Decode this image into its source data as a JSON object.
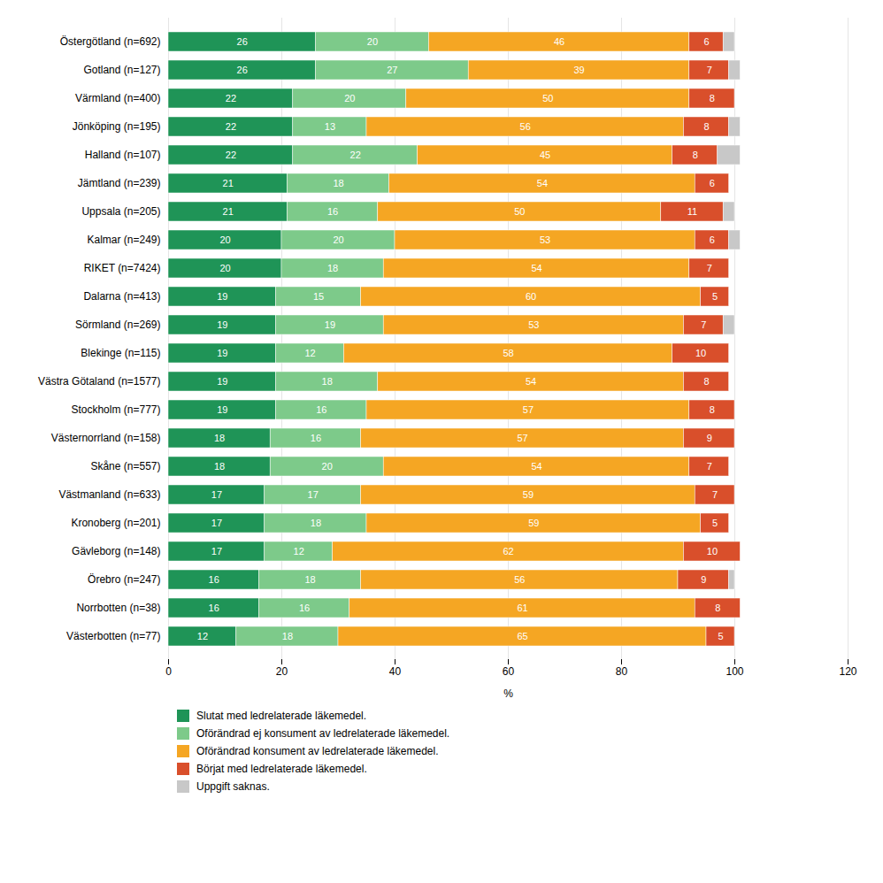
{
  "chart_data": {
    "type": "bar",
    "orientation": "horizontal",
    "stacked": true,
    "data_labels": true,
    "grid": true,
    "legend": "bottom",
    "xlabel": "%",
    "xlim": [
      0,
      120
    ],
    "xticks": [
      0,
      20,
      40,
      60,
      80,
      100,
      120
    ],
    "categories": [
      "Östergötland (n=692)",
      "Gotland (n=127)",
      "Värmland (n=400)",
      "Jönköping (n=195)",
      "Halland (n=107)",
      "Jämtland (n=239)",
      "Uppsala (n=205)",
      "Kalmar (n=249)",
      "RIKET (n=7424)",
      "Dalarna (n=413)",
      "Sörmland (n=269)",
      "Blekinge (n=115)",
      "Västra Götaland (n=1577)",
      "Stockholm (n=777)",
      "Västernorrland (n=158)",
      "Skåne (n=557)",
      "Västmanland (n=633)",
      "Kronoberg (n=201)",
      "Gävleborg (n=148)",
      "Örebro (n=247)",
      "Norrbotten (n=38)",
      "Västerbotten (n=77)"
    ],
    "series": [
      {
        "name": "Slutat med ledrelaterade läkemedel.",
        "color": "#1f9457",
        "values": [
          26,
          26,
          22,
          22,
          22,
          21,
          21,
          20,
          20,
          19,
          19,
          19,
          19,
          19,
          18,
          18,
          17,
          17,
          17,
          16,
          16,
          12
        ],
        "value_labels": [
          "26",
          "26",
          "22",
          "22",
          "22",
          "21",
          "21",
          "20",
          "20",
          "19",
          "19",
          "19",
          "19",
          "19",
          "18",
          "18",
          "17",
          "17",
          "17",
          "16",
          "16",
          "12"
        ]
      },
      {
        "name": "Oförändrad ej konsument av ledrelaterade läkemedel.",
        "color": "#7dca8a",
        "values": [
          20,
          27,
          20,
          13,
          22,
          18,
          16,
          20,
          18,
          15,
          19,
          12,
          18,
          16,
          16,
          20,
          17,
          18,
          12,
          18,
          16,
          18
        ],
        "value_labels": [
          "20",
          "27",
          "20",
          "13",
          "22",
          "18",
          "16",
          "20",
          "18",
          "15",
          "19",
          "12",
          "18",
          "16",
          "16",
          "20",
          "17",
          "18",
          "12",
          "18",
          "16",
          "18"
        ]
      },
      {
        "name": "Oförändrad konsument av ledrelaterade läkemedel.",
        "color": "#f5a623",
        "values": [
          46,
          39,
          50,
          56,
          45,
          54,
          50,
          53,
          54,
          60,
          53,
          58,
          54,
          57,
          57,
          54,
          59,
          59,
          62,
          56,
          61,
          65
        ],
        "value_labels": [
          "46",
          "39",
          "50",
          "56",
          "45",
          "54",
          "50",
          "53",
          "54",
          "60",
          "53",
          "58",
          "54",
          "57",
          "57",
          "54",
          "59",
          "59",
          "62",
          "56",
          "61",
          "65"
        ]
      },
      {
        "name": "Börjat med ledrelaterade läkemedel.",
        "color": "#d94f2b",
        "values": [
          6,
          7,
          8,
          8,
          8,
          6,
          11,
          6,
          7,
          5,
          7,
          10,
          8,
          8,
          9,
          7,
          7,
          5,
          10,
          9,
          8,
          5
        ],
        "value_labels": [
          "6",
          "7",
          "8",
          "8",
          "8",
          "6",
          "11",
          "6",
          "7",
          "5",
          "7",
          "10",
          "8",
          "8",
          "9",
          "7",
          "7",
          "5",
          "10",
          "9",
          "8",
          "5"
        ]
      },
      {
        "name": "Uppgift saknas.",
        "color": "#c8c8c8",
        "values": [
          2,
          2,
          0,
          2,
          4,
          0,
          2,
          2,
          0,
          0,
          2,
          0,
          0,
          0,
          0,
          0,
          0,
          0,
          0,
          1,
          0,
          0
        ],
        "value_labels": [
          null,
          null,
          null,
          null,
          null,
          null,
          null,
          null,
          null,
          null,
          null,
          null,
          null,
          null,
          null,
          null,
          null,
          null,
          null,
          null,
          null,
          null
        ]
      }
    ]
  }
}
